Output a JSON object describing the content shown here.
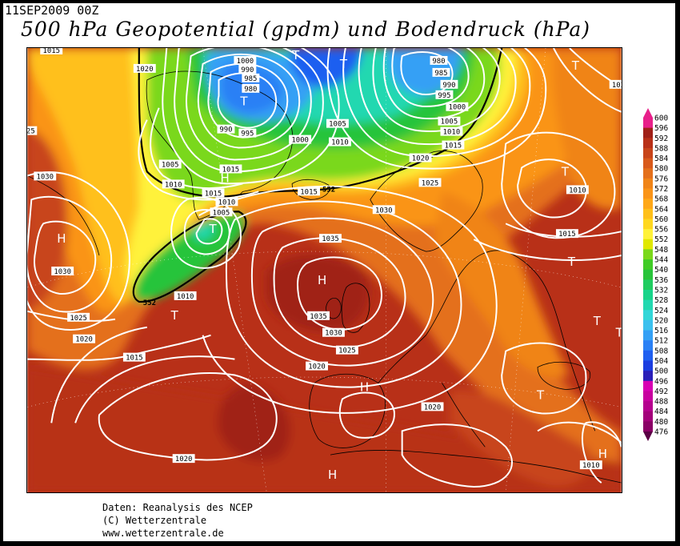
{
  "header": {
    "date_label": "11SEP2009 00Z",
    "title": "500 hPa Geopotential (gpdm) und Bodendruck (hPa)"
  },
  "colors": {
    "pressure_contour": "#ffffff",
    "geopotential_552_line": "#000000",
    "scale": {
      "476": "#6a0051",
      "480": "#8a0066",
      "484": "#a3007a",
      "488": "#b5008e",
      "492": "#c8009f",
      "496": "#d800b3",
      "500": "#2a1fb8",
      "504": "#1b3de0",
      "508": "#1f5ff0",
      "512": "#2a80f5",
      "516": "#34a0f5",
      "520": "#3bc0ee",
      "524": "#32d6d8",
      "528": "#22d8b0",
      "532": "#18d48a",
      "536": "#20cc60",
      "540": "#28c43a",
      "544": "#40cc26",
      "548": "#7ad81a",
      "552": "#e0e800",
      "556": "#fff23a",
      "560": "#ffd820",
      "564": "#ffc01a",
      "568": "#ffa818",
      "572": "#fa9418",
      "576": "#f08418",
      "580": "#e4701c",
      "584": "#d85a1c",
      "588": "#c8441a",
      "592": "#b83018",
      "596": "#a02018",
      "600": "#e8208a"
    }
  },
  "colorbar": {
    "labels": [
      "600",
      "596",
      "592",
      "588",
      "584",
      "580",
      "576",
      "572",
      "568",
      "564",
      "560",
      "556",
      "552",
      "548",
      "544",
      "540",
      "536",
      "532",
      "528",
      "524",
      "520",
      "516",
      "512",
      "508",
      "504",
      "500",
      "496",
      "492",
      "488",
      "484",
      "480",
      "476"
    ]
  },
  "map": {
    "pressure_labels": [
      {
        "text": "1015"
      },
      {
        "text": "1020"
      },
      {
        "text": "1000"
      },
      {
        "text": "990"
      },
      {
        "text": "985"
      },
      {
        "text": "980"
      },
      {
        "text": "990"
      },
      {
        "text": "995"
      },
      {
        "text": "1000"
      },
      {
        "text": "1005"
      },
      {
        "text": "1010"
      },
      {
        "text": "980"
      },
      {
        "text": "985"
      },
      {
        "text": "990"
      },
      {
        "text": "995"
      },
      {
        "text": "1000"
      },
      {
        "text": "1005"
      },
      {
        "text": "1010"
      },
      {
        "text": "1015"
      },
      {
        "text": "1020"
      },
      {
        "text": "1025"
      },
      {
        "text": "1020"
      },
      {
        "text": "1005"
      },
      {
        "text": "1010"
      },
      {
        "text": "1015"
      },
      {
        "text": "1015"
      },
      {
        "text": "1010"
      },
      {
        "text": "1005"
      },
      {
        "text": "1030"
      },
      {
        "text": "1025"
      },
      {
        "text": "1030"
      },
      {
        "text": "1035"
      },
      {
        "text": "1035"
      },
      {
        "text": "1030"
      },
      {
        "text": "1025"
      },
      {
        "text": "1030"
      },
      {
        "text": "1025"
      },
      {
        "text": "1020"
      },
      {
        "text": "1015"
      },
      {
        "text": "1010"
      },
      {
        "text": "1020"
      },
      {
        "text": "1020"
      },
      {
        "text": "1015"
      },
      {
        "text": "1015"
      },
      {
        "text": "1010"
      },
      {
        "text": "1020"
      },
      {
        "text": "1010"
      },
      {
        "text": "25"
      }
    ],
    "geopotential_labels": [
      {
        "text": "552"
      },
      {
        "text": "552"
      }
    ],
    "pressure_centers": [
      {
        "text": "T"
      },
      {
        "text": "T"
      },
      {
        "text": "T"
      },
      {
        "text": "T"
      },
      {
        "text": "H"
      },
      {
        "text": "T"
      },
      {
        "text": "H"
      },
      {
        "text": "H"
      },
      {
        "text": "T"
      },
      {
        "text": "T"
      },
      {
        "text": "H"
      },
      {
        "text": "T"
      },
      {
        "text": "T"
      },
      {
        "text": "T"
      },
      {
        "text": "H"
      },
      {
        "text": "H"
      },
      {
        "text": "T"
      }
    ]
  },
  "footer": {
    "line1": "Daten: Reanalysis des NCEP",
    "line2": "(C) Wetterzentrale",
    "line3": "www.wetterzentrale.de"
  }
}
